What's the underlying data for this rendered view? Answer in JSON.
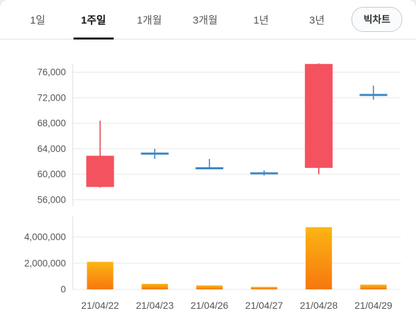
{
  "tabs": {
    "items": [
      {
        "label": "1일",
        "active": false
      },
      {
        "label": "1주일",
        "active": true
      },
      {
        "label": "1개월",
        "active": false
      },
      {
        "label": "3개월",
        "active": false
      },
      {
        "label": "1년",
        "active": false
      },
      {
        "label": "3년",
        "active": false
      }
    ],
    "big_chart_label": "빅차트"
  },
  "colors": {
    "up": "#f4525e",
    "up_wick": "#e8404d",
    "down": "#3f87c5",
    "grid": "#e8e8e8",
    "axis_line": "#dddddd",
    "tick_text": "#555555",
    "volume_grad_top": "#fcb514",
    "volume_grad_bottom": "#f6770e"
  },
  "chart_data": [
    {
      "type": "candlestick",
      "title": "주가 (일주일, 주봉 캔들차트)",
      "categories": [
        "21/04/22",
        "21/04/23",
        "21/04/26",
        "21/04/27",
        "21/04/28",
        "21/04/29"
      ],
      "ylim": [
        55000,
        79500
      ],
      "yticks": [
        {
          "value": 56000,
          "label": "56,000"
        },
        {
          "value": 60000,
          "label": "60,000"
        },
        {
          "value": 64000,
          "label": "64,000"
        },
        {
          "value": 68000,
          "label": "68,000"
        },
        {
          "value": 72000,
          "label": "72,000"
        },
        {
          "value": 76000,
          "label": "76,000"
        }
      ],
      "candles": [
        {
          "date": "21/04/22",
          "open": 58000,
          "high": 68400,
          "low": 57900,
          "close": 62900,
          "direction": "up"
        },
        {
          "date": "21/04/23",
          "open": 63400,
          "high": 64000,
          "low": 62400,
          "close": 63200,
          "direction": "down"
        },
        {
          "date": "21/04/26",
          "open": 61100,
          "high": 62400,
          "low": 60900,
          "close": 61000,
          "direction": "down"
        },
        {
          "date": "21/04/27",
          "open": 60300,
          "high": 60600,
          "low": 59800,
          "close": 60000,
          "direction": "down"
        },
        {
          "date": "21/04/28",
          "open": 61000,
          "high": 77400,
          "low": 60000,
          "close": 77300,
          "direction": "up"
        },
        {
          "date": "21/04/29",
          "open": 72600,
          "high": 73900,
          "low": 71700,
          "close": 72450,
          "direction": "down"
        }
      ],
      "legend": "none",
      "grid": true
    },
    {
      "type": "bar",
      "title": "거래량",
      "categories": [
        "21/04/22",
        "21/04/23",
        "21/04/26",
        "21/04/27",
        "21/04/28",
        "21/04/29"
      ],
      "values": [
        2100000,
        420000,
        300000,
        190000,
        4750000,
        360000
      ],
      "ylim": [
        0,
        5300000
      ],
      "yticks": [
        {
          "value": 0,
          "label": "0"
        },
        {
          "value": 2000000,
          "label": "2,000,000"
        },
        {
          "value": 4000000,
          "label": "4,000,000"
        }
      ],
      "legend": "none",
      "grid": true
    }
  ]
}
